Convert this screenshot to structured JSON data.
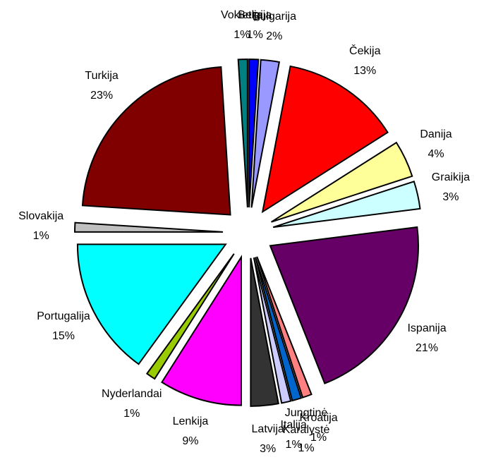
{
  "chart_data": {
    "type": "pie",
    "categories": [
      "Belgija",
      "Bulgarija",
      "Čekija",
      "Danija",
      "Graikija",
      "Ispanija",
      "Kroatija",
      "Jungtinė Karalystė",
      "Italija",
      "Latvija",
      "Lenkija",
      "Nyderlandai",
      "Portugalija",
      "Slovakija",
      "Turkija",
      "Vokietija"
    ],
    "values": [
      1,
      2,
      13,
      4,
      3,
      21,
      1,
      1,
      1,
      3,
      9,
      1,
      15,
      1,
      23,
      1
    ],
    "value_labels": [
      "1%",
      "2%",
      "13%",
      "4%",
      "3%",
      "21%",
      "1%",
      "1%",
      "1%",
      "3%",
      "9%",
      "1%",
      "15%",
      "1%",
      "23%",
      "1%"
    ],
    "colors": [
      "#0000ff",
      "#9999ff",
      "#ff0000",
      "#ffff99",
      "#ccffff",
      "#660066",
      "#ff8080",
      "#0066cc",
      "#ccccff",
      "#333333",
      "#ff00ff",
      "#99cc00",
      "#00ffff",
      "#c0c0c0",
      "#800000",
      "#008080"
    ]
  }
}
